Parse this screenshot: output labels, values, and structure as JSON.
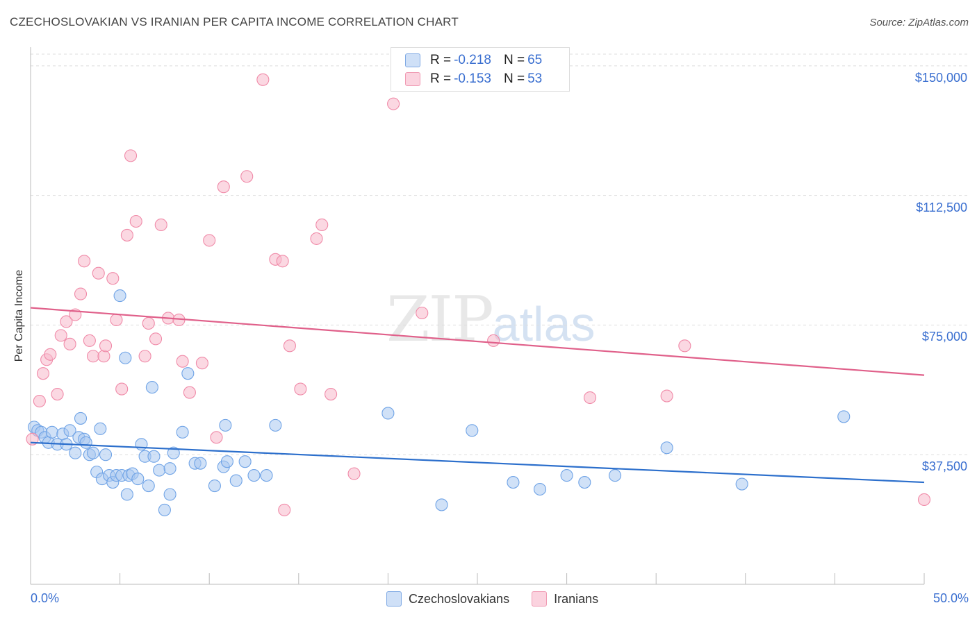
{
  "title": "CZECHOSLOVAKIAN VS IRANIAN PER CAPITA INCOME CORRELATION CHART",
  "source": "Source: ZipAtlas.com",
  "watermark": {
    "zip": "ZIP",
    "atlas": "atlas"
  },
  "legend_top": [
    {
      "r_label": "R =",
      "r_value": "-0.218",
      "n_label": "N =",
      "n_value": "65",
      "color": "#a9c8f0"
    },
    {
      "r_label": "R =",
      "r_value": "-0.153",
      "n_label": "N =",
      "n_value": "53",
      "color": "#f7b8cb"
    }
  ],
  "legend_bottom": [
    {
      "label": "Czechoslovakians",
      "color": "#a9c8f0"
    },
    {
      "label": "Iranians",
      "color": "#f7b8cb"
    }
  ],
  "chart_data": {
    "type": "scatter",
    "title": "CZECHOSLOVAKIAN VS IRANIAN PER CAPITA INCOME CORRELATION CHART",
    "xlabel": "",
    "ylabel": "Per Capita Income",
    "xlim": [
      0,
      50
    ],
    "ylim": [
      0,
      157000
    ],
    "x_tick_labels": [
      "0.0%",
      "50.0%"
    ],
    "y_ticks": [
      37500,
      75000,
      112500,
      150000
    ],
    "y_tick_labels": [
      "$37,500",
      "$75,000",
      "$112,500",
      "$150,000"
    ],
    "grid": true,
    "legend": "top-center",
    "series": [
      {
        "name": "Czechoslovakians",
        "color": "#6fa3e6",
        "fill": "#a9c8f0",
        "trend": {
          "x": [
            0,
            50
          ],
          "y": [
            41000,
            29500
          ],
          "color": "#2c6fcc"
        },
        "points": [
          [
            0.2,
            45500
          ],
          [
            0.4,
            44500
          ],
          [
            0.6,
            44000
          ],
          [
            0.8,
            42500
          ],
          [
            1.0,
            41000
          ],
          [
            1.2,
            44000
          ],
          [
            1.5,
            40500
          ],
          [
            1.8,
            43500
          ],
          [
            2.0,
            40500
          ],
          [
            2.2,
            44500
          ],
          [
            2.5,
            38000
          ],
          [
            2.7,
            42500
          ],
          [
            2.8,
            48000
          ],
          [
            3.0,
            42000
          ],
          [
            3.1,
            41000
          ],
          [
            3.3,
            37500
          ],
          [
            3.5,
            38000
          ],
          [
            3.7,
            32500
          ],
          [
            3.9,
            45000
          ],
          [
            4.0,
            30500
          ],
          [
            4.2,
            37500
          ],
          [
            4.4,
            31500
          ],
          [
            4.6,
            29500
          ],
          [
            4.8,
            31500
          ],
          [
            5.0,
            83500
          ],
          [
            5.1,
            31500
          ],
          [
            5.3,
            65500
          ],
          [
            5.4,
            26000
          ],
          [
            5.5,
            31500
          ],
          [
            5.7,
            32000
          ],
          [
            6.0,
            30500
          ],
          [
            6.2,
            40500
          ],
          [
            6.4,
            37000
          ],
          [
            6.6,
            28500
          ],
          [
            6.8,
            57000
          ],
          [
            6.9,
            37000
          ],
          [
            7.2,
            33000
          ],
          [
            7.5,
            21500
          ],
          [
            7.8,
            26000
          ],
          [
            7.8,
            33500
          ],
          [
            8.0,
            38000
          ],
          [
            8.5,
            44000
          ],
          [
            8.8,
            61000
          ],
          [
            9.2,
            35000
          ],
          [
            9.5,
            35000
          ],
          [
            10.3,
            28500
          ],
          [
            10.8,
            34000
          ],
          [
            10.9,
            46000
          ],
          [
            11.0,
            35500
          ],
          [
            11.5,
            30000
          ],
          [
            12.0,
            35500
          ],
          [
            12.5,
            31500
          ],
          [
            13.2,
            31500
          ],
          [
            13.7,
            46000
          ],
          [
            20.0,
            49500
          ],
          [
            23.0,
            23000
          ],
          [
            24.7,
            44500
          ],
          [
            27.0,
            29500
          ],
          [
            28.5,
            27500
          ],
          [
            30.0,
            31500
          ],
          [
            31.0,
            29500
          ],
          [
            32.7,
            31500
          ],
          [
            35.6,
            39500
          ],
          [
            39.8,
            29000
          ],
          [
            45.5,
            48500
          ]
        ]
      },
      {
        "name": "Iranians",
        "color": "#f08aa8",
        "fill": "#f7b8cb",
        "trend": {
          "x": [
            0,
            50
          ],
          "y": [
            80000,
            60500
          ],
          "color": "#e0608a"
        },
        "points": [
          [
            0.1,
            42000
          ],
          [
            0.5,
            53000
          ],
          [
            0.7,
            61000
          ],
          [
            0.9,
            65000
          ],
          [
            1.1,
            66500
          ],
          [
            1.5,
            55000
          ],
          [
            1.7,
            72000
          ],
          [
            2.0,
            76000
          ],
          [
            2.2,
            69500
          ],
          [
            2.5,
            78000
          ],
          [
            2.8,
            84000
          ],
          [
            3.0,
            93500
          ],
          [
            3.3,
            70500
          ],
          [
            3.5,
            66000
          ],
          [
            3.8,
            90000
          ],
          [
            4.1,
            66000
          ],
          [
            4.2,
            69000
          ],
          [
            4.6,
            88500
          ],
          [
            4.8,
            76500
          ],
          [
            5.1,
            56500
          ],
          [
            5.4,
            101000
          ],
          [
            5.6,
            124000
          ],
          [
            5.9,
            105000
          ],
          [
            6.4,
            66000
          ],
          [
            6.6,
            75500
          ],
          [
            7.0,
            71000
          ],
          [
            7.3,
            104000
          ],
          [
            7.7,
            77000
          ],
          [
            8.3,
            76500
          ],
          [
            8.5,
            64500
          ],
          [
            8.9,
            55500
          ],
          [
            9.6,
            64000
          ],
          [
            10.0,
            99500
          ],
          [
            10.4,
            42500
          ],
          [
            10.8,
            115000
          ],
          [
            12.1,
            118000
          ],
          [
            13.0,
            146000
          ],
          [
            13.7,
            94000
          ],
          [
            14.1,
            93500
          ],
          [
            14.2,
            21500
          ],
          [
            14.5,
            69000
          ],
          [
            15.1,
            56500
          ],
          [
            16.0,
            100000
          ],
          [
            16.3,
            104000
          ],
          [
            16.8,
            55000
          ],
          [
            18.1,
            32000
          ],
          [
            20.3,
            139000
          ],
          [
            21.9,
            78500
          ],
          [
            25.9,
            70500
          ],
          [
            31.3,
            54000
          ],
          [
            35.6,
            54500
          ],
          [
            36.6,
            69000
          ],
          [
            50.0,
            24500
          ]
        ]
      }
    ]
  }
}
